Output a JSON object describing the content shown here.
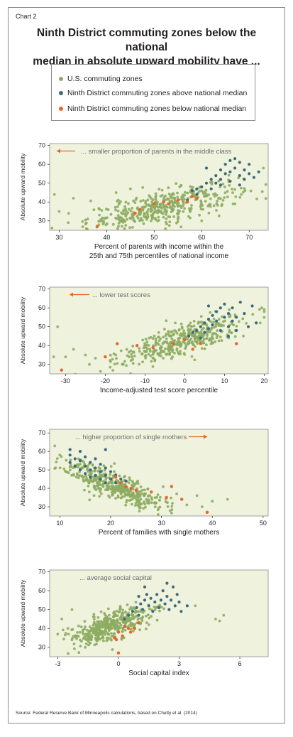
{
  "header": {
    "chart_label": "Chart 2",
    "title_line1": "Ninth District commuting zones below the national",
    "title_line2": "median in absolute upward mobility have ..."
  },
  "legend": {
    "items": [
      {
        "label": "U.S. commuting zones",
        "color": "#8dac62"
      },
      {
        "label": "Ninth District commuting zones above national median",
        "color": "#3e6a7f"
      },
      {
        "label": "Ninth District commuting zones below national median",
        "color": "#e8642c"
      }
    ]
  },
  "colors": {
    "plot_background": "#eff2dc",
    "us": "#8dac62",
    "above": "#3e6a7f",
    "below": "#e8642c",
    "annotation_text": "#6d6e71",
    "annotation_arrow": "#e8642c"
  },
  "source": "Source: Federal Reserve Bank of Minneapolis calculations, based on Chetty et al. (2014)",
  "chart_data": [
    {
      "type": "scatter",
      "ylabel": "Absolute upward mobility",
      "xlabel_lines": [
        "Percent of parents with income within the",
        "25th and 75th percentiles of national income"
      ],
      "annotation": "... smaller proportion of parents in the middle class",
      "arrow_direction": "left",
      "xlim": [
        28,
        74
      ],
      "ylim": [
        25,
        71
      ],
      "xticks": [
        30,
        40,
        50,
        60,
        70
      ],
      "yticks": [
        30,
        40,
        50,
        60,
        70
      ],
      "grid": false,
      "us_trend": {
        "slope": 0.55,
        "intercept": 9,
        "spread": 4.2,
        "x_mean": 52,
        "x_sd": 8,
        "x_min": 28.5,
        "x_max": 73.5,
        "count": 420
      },
      "us_extra": [
        [
          29,
          44
        ],
        [
          30,
          35
        ],
        [
          32,
          34
        ],
        [
          33,
          42
        ],
        [
          36,
          31
        ],
        [
          45,
          47
        ],
        [
          60,
          30
        ],
        [
          73,
          58
        ],
        [
          55,
          31
        ],
        [
          42,
          45
        ]
      ],
      "above": [
        [
          57,
          41
        ],
        [
          58,
          46
        ],
        [
          59,
          47
        ],
        [
          60,
          48
        ],
        [
          61,
          50
        ],
        [
          62,
          52
        ],
        [
          62,
          47
        ],
        [
          63,
          54
        ],
        [
          63,
          50
        ],
        [
          64,
          57
        ],
        [
          64,
          52
        ],
        [
          65,
          60
        ],
        [
          65,
          55
        ],
        [
          66,
          56
        ],
        [
          66,
          51
        ],
        [
          67,
          63
        ],
        [
          67,
          58
        ],
        [
          68,
          61
        ],
        [
          68,
          54
        ],
        [
          69,
          57
        ],
        [
          69,
          52
        ],
        [
          70,
          60
        ],
        [
          70,
          55
        ],
        [
          71,
          53
        ],
        [
          72,
          56
        ],
        [
          61,
          58
        ],
        [
          66,
          62
        ],
        [
          64,
          49
        ],
        [
          59,
          44
        ],
        [
          68,
          49
        ]
      ],
      "below": [
        [
          38,
          27
        ],
        [
          46,
          34
        ],
        [
          47,
          36
        ],
        [
          50,
          39
        ],
        [
          52,
          40
        ],
        [
          55,
          41
        ],
        [
          57,
          40
        ],
        [
          58,
          43
        ],
        [
          59,
          42
        ],
        [
          53,
          39
        ]
      ]
    },
    {
      "type": "scatter",
      "ylabel": "Absolute upward mobility",
      "xlabel_lines": [
        "Income-adjusted test score percentile"
      ],
      "annotation": "... lower test scores",
      "arrow_direction": "left",
      "xlim": [
        -34,
        21
      ],
      "ylim": [
        25,
        71
      ],
      "xticks": [
        -30,
        -20,
        -10,
        0,
        10,
        20
      ],
      "yticks": [
        30,
        40,
        50,
        60,
        70
      ],
      "grid": false,
      "us_trend": {
        "slope": 0.62,
        "intercept": 43.5,
        "spread": 4,
        "x_mean": -1,
        "x_sd": 8,
        "x_min": -33,
        "x_max": 20,
        "count": 420
      },
      "us_extra": [
        [
          -33,
          34
        ],
        [
          -32,
          50
        ],
        [
          -30,
          34
        ],
        [
          -28,
          38
        ],
        [
          -25,
          35
        ],
        [
          19,
          52
        ],
        [
          20,
          58
        ],
        [
          -24,
          30
        ]
      ],
      "above": [
        [
          1,
          45
        ],
        [
          2,
          47
        ],
        [
          3,
          48
        ],
        [
          4,
          50
        ],
        [
          5,
          52
        ],
        [
          5,
          47
        ],
        [
          6,
          54
        ],
        [
          6,
          49
        ],
        [
          7,
          56
        ],
        [
          7,
          51
        ],
        [
          8,
          58
        ],
        [
          8,
          53
        ],
        [
          9,
          60
        ],
        [
          9,
          48
        ],
        [
          10,
          62
        ],
        [
          10,
          55
        ],
        [
          11,
          57
        ],
        [
          11,
          50
        ],
        [
          12,
          60
        ],
        [
          12,
          53
        ],
        [
          13,
          55
        ],
        [
          13,
          48
        ],
        [
          14,
          63
        ],
        [
          15,
          57
        ],
        [
          16,
          50
        ],
        [
          17,
          61
        ],
        [
          18,
          52
        ],
        [
          4,
          44
        ],
        [
          6,
          61
        ],
        [
          11,
          45
        ]
      ],
      "below": [
        [
          -31,
          27
        ],
        [
          -20,
          34
        ],
        [
          -17,
          41
        ],
        [
          -12,
          40
        ],
        [
          -8,
          39
        ],
        [
          -3,
          41
        ],
        [
          0,
          43
        ],
        [
          2,
          38
        ],
        [
          4,
          41
        ],
        [
          13,
          41
        ]
      ]
    },
    {
      "type": "scatter",
      "ylabel": "Absolute upward mobility",
      "xlabel_lines": [
        "Percent of families with single mothers"
      ],
      "annotation": "... higher proportion of single mothers",
      "arrow_direction": "right",
      "xlim": [
        8,
        51
      ],
      "ylim": [
        25,
        72
      ],
      "xticks": [
        10,
        20,
        30,
        40,
        50
      ],
      "yticks": [
        30,
        40,
        50,
        60,
        70
      ],
      "grid": false,
      "us_trend": {
        "slope": -1.05,
        "intercept": 63,
        "spread": 3.8,
        "x_mean": 21,
        "x_sd": 5,
        "x_min": 9,
        "x_max": 42,
        "count": 420
      },
      "us_extra": [
        [
          9,
          63
        ],
        [
          10,
          58
        ],
        [
          35,
          31
        ],
        [
          37,
          36
        ],
        [
          40,
          33
        ],
        [
          43,
          34
        ],
        [
          38,
          30
        ],
        [
          33,
          37
        ]
      ],
      "above": [
        [
          12,
          58
        ],
        [
          12,
          54
        ],
        [
          13,
          56
        ],
        [
          13,
          52
        ],
        [
          14,
          60
        ],
        [
          14,
          55
        ],
        [
          14,
          50
        ],
        [
          15,
          57
        ],
        [
          15,
          52
        ],
        [
          15,
          48
        ],
        [
          16,
          54
        ],
        [
          16,
          50
        ],
        [
          16,
          46
        ],
        [
          17,
          56
        ],
        [
          17,
          51
        ],
        [
          17,
          47
        ],
        [
          18,
          53
        ],
        [
          18,
          49
        ],
        [
          18,
          45
        ],
        [
          19,
          51
        ],
        [
          19,
          47
        ],
        [
          19,
          43
        ],
        [
          20,
          49
        ],
        [
          20,
          45
        ],
        [
          21,
          47
        ],
        [
          21,
          43
        ],
        [
          22,
          45
        ],
        [
          23,
          44
        ],
        [
          12,
          61
        ],
        [
          19,
          61
        ]
      ],
      "below": [
        [
          21,
          46
        ],
        [
          22,
          43
        ],
        [
          23,
          41
        ],
        [
          24,
          40
        ],
        [
          25,
          39
        ],
        [
          28,
          38
        ],
        [
          31,
          35
        ],
        [
          32,
          41
        ],
        [
          34,
          34
        ],
        [
          39,
          27
        ]
      ]
    },
    {
      "type": "scatter",
      "ylabel": "Absolute upward mobility",
      "xlabel_lines": [
        "Social capital index"
      ],
      "annotation": "... average social capital",
      "arrow_direction": "none",
      "xlim": [
        -3.4,
        7.4
      ],
      "ylim": [
        25,
        71
      ],
      "xticks": [
        -3,
        0,
        3,
        6
      ],
      "yticks": [
        30,
        40,
        50,
        60,
        70
      ],
      "grid": false,
      "us_trend": {
        "slope": 3.4,
        "intercept": 42.5,
        "spread": 3.8,
        "x_mean": -0.4,
        "x_sd": 0.95,
        "x_min": -3.1,
        "x_max": 4.5,
        "count": 420
      },
      "us_extra": [
        [
          -3,
          37
        ],
        [
          -2.8,
          45
        ],
        [
          -2.5,
          40
        ],
        [
          -2.3,
          50
        ],
        [
          4.8,
          45
        ],
        [
          5.2,
          47
        ],
        [
          5,
          44
        ],
        [
          3.8,
          52
        ]
      ],
      "above": [
        [
          0.3,
          45
        ],
        [
          0.5,
          47
        ],
        [
          0.7,
          49
        ],
        [
          0.9,
          51
        ],
        [
          1,
          47
        ],
        [
          1.1,
          53
        ],
        [
          1.2,
          50
        ],
        [
          1.3,
          55
        ],
        [
          1.3,
          62
        ],
        [
          1.4,
          58
        ],
        [
          1.5,
          52
        ],
        [
          1.6,
          56
        ],
        [
          1.7,
          49
        ],
        [
          1.8,
          54
        ],
        [
          1.9,
          58
        ],
        [
          2,
          51
        ],
        [
          2.1,
          55
        ],
        [
          2.2,
          60
        ],
        [
          2.3,
          53
        ],
        [
          2.4,
          57
        ],
        [
          2.5,
          50
        ],
        [
          2.6,
          55
        ],
        [
          2.7,
          62
        ],
        [
          2.8,
          52
        ],
        [
          2.9,
          58
        ],
        [
          3,
          54
        ],
        [
          3.1,
          49
        ],
        [
          3.4,
          52
        ],
        [
          1,
          57
        ],
        [
          2.4,
          64
        ]
      ],
      "below": [
        [
          -0.2,
          35
        ],
        [
          -0.1,
          34
        ],
        [
          0,
          27
        ],
        [
          0,
          38
        ],
        [
          0.2,
          36
        ],
        [
          0.3,
          41
        ],
        [
          0.5,
          40
        ],
        [
          0.6,
          38
        ],
        [
          0.8,
          40
        ],
        [
          1,
          43
        ]
      ]
    }
  ]
}
